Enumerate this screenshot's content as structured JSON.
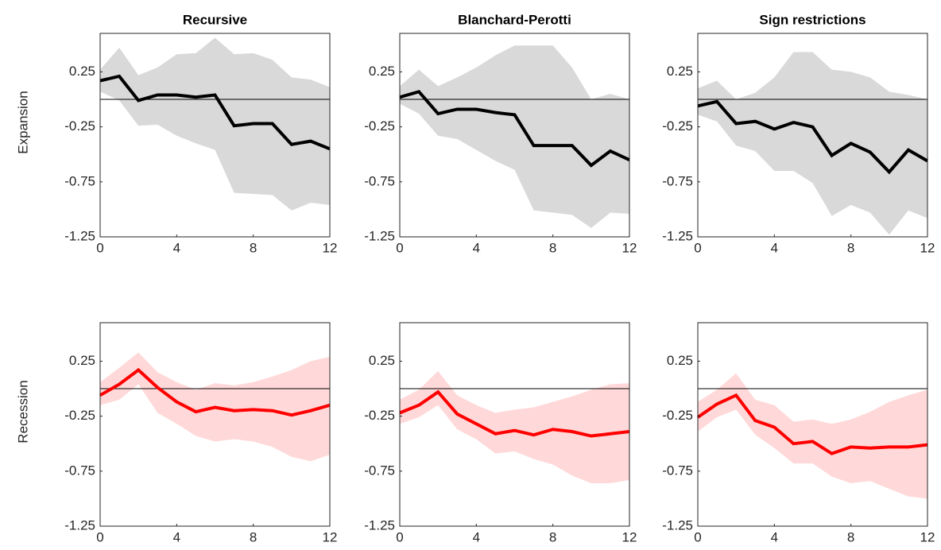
{
  "chart_data": [
    {
      "type": "line",
      "title": "Recursive",
      "ylabel": "Expansion",
      "x": [
        0,
        1,
        2,
        3,
        4,
        5,
        6,
        7,
        8,
        9,
        10,
        11,
        12
      ],
      "values": [
        0.17,
        0.21,
        -0.01,
        0.04,
        0.04,
        0.02,
        0.04,
        -0.24,
        -0.22,
        -0.22,
        -0.41,
        -0.38,
        -0.45
      ],
      "upper": [
        0.27,
        0.47,
        0.22,
        0.29,
        0.41,
        0.42,
        0.56,
        0.41,
        0.42,
        0.36,
        0.2,
        0.18,
        0.11
      ],
      "lower": [
        0.07,
        -0.01,
        -0.24,
        -0.23,
        -0.33,
        -0.4,
        -0.46,
        -0.85,
        -0.86,
        -0.87,
        -1.01,
        -0.94,
        -0.96
      ],
      "color": "#000000",
      "band_color": "#d9d9d9",
      "reference_line": 0,
      "xlim": [
        0,
        12
      ],
      "ylim": [
        -1.25,
        0.6
      ],
      "xticks": [
        0,
        4,
        8,
        12
      ],
      "yticks": [
        -1.25,
        -0.75,
        -0.25,
        0.25
      ]
    },
    {
      "type": "line",
      "title": "Blanchard-Perotti",
      "x": [
        0,
        1,
        2,
        3,
        4,
        5,
        6,
        7,
        8,
        9,
        10,
        11,
        12
      ],
      "values": [
        0.02,
        0.07,
        -0.13,
        -0.09,
        -0.09,
        -0.12,
        -0.14,
        -0.42,
        -0.42,
        -0.42,
        -0.6,
        -0.47,
        -0.55
      ],
      "upper": [
        0.12,
        0.27,
        0.12,
        0.2,
        0.29,
        0.4,
        0.49,
        0.49,
        0.49,
        0.29,
        0.0,
        0.05,
        0.0
      ],
      "lower": [
        -0.04,
        -0.13,
        -0.33,
        -0.36,
        -0.46,
        -0.56,
        -0.64,
        -1.01,
        -1.03,
        -1.05,
        -1.17,
        -1.03,
        -1.04
      ],
      "color": "#000000",
      "band_color": "#d9d9d9",
      "reference_line": 0,
      "xlim": [
        0,
        12
      ],
      "ylim": [
        -1.25,
        0.6
      ],
      "xticks": [
        0,
        4,
        8,
        12
      ],
      "yticks": [
        -1.25,
        -0.75,
        -0.25,
        0.25
      ]
    },
    {
      "type": "line",
      "title": "Sign restrictions",
      "x": [
        0,
        1,
        2,
        3,
        4,
        5,
        6,
        7,
        8,
        9,
        10,
        11,
        12
      ],
      "values": [
        -0.06,
        -0.02,
        -0.22,
        -0.2,
        -0.27,
        -0.21,
        -0.25,
        -0.51,
        -0.4,
        -0.48,
        -0.66,
        -0.46,
        -0.56
      ],
      "upper": [
        0.1,
        0.17,
        0.0,
        0.06,
        0.2,
        0.43,
        0.43,
        0.27,
        0.25,
        0.2,
        0.07,
        0.04,
        0.0
      ],
      "lower": [
        -0.14,
        -0.2,
        -0.42,
        -0.47,
        -0.65,
        -0.65,
        -0.76,
        -1.06,
        -0.96,
        -1.03,
        -1.23,
        -1.01,
        -1.08
      ],
      "color": "#000000",
      "band_color": "#d9d9d9",
      "reference_line": 0,
      "xlim": [
        0,
        12
      ],
      "ylim": [
        -1.25,
        0.6
      ],
      "xticks": [
        0,
        4,
        8,
        12
      ],
      "yticks": [
        -1.25,
        -0.75,
        -0.25,
        0.25
      ]
    },
    {
      "type": "line",
      "ylabel": "Recession",
      "x": [
        0,
        1,
        2,
        3,
        4,
        5,
        6,
        7,
        8,
        9,
        10,
        11,
        12
      ],
      "values": [
        -0.06,
        0.04,
        0.17,
        0.01,
        -0.12,
        -0.21,
        -0.17,
        -0.2,
        -0.19,
        -0.2,
        -0.24,
        -0.2,
        -0.15
      ],
      "upper": [
        0.06,
        0.19,
        0.33,
        0.15,
        0.06,
        -0.01,
        0.05,
        0.03,
        0.06,
        0.11,
        0.17,
        0.25,
        0.29
      ],
      "lower": [
        -0.15,
        -0.1,
        0.04,
        -0.22,
        -0.32,
        -0.43,
        -0.48,
        -0.46,
        -0.48,
        -0.53,
        -0.62,
        -0.66,
        -0.6
      ],
      "color": "#ff0000",
      "band_color": "#ffd9d9",
      "reference_line": 0,
      "xlim": [
        0,
        12
      ],
      "ylim": [
        -1.25,
        0.6
      ],
      "xticks": [
        0,
        4,
        8,
        12
      ],
      "yticks": [
        -1.25,
        -0.75,
        -0.25,
        0.25
      ]
    },
    {
      "type": "line",
      "x": [
        0,
        1,
        2,
        3,
        4,
        5,
        6,
        7,
        8,
        9,
        10,
        11,
        12
      ],
      "values": [
        -0.22,
        -0.15,
        -0.03,
        -0.23,
        -0.32,
        -0.41,
        -0.38,
        -0.42,
        -0.37,
        -0.39,
        -0.43,
        -0.41,
        -0.39
      ],
      "upper": [
        -0.1,
        -0.01,
        0.16,
        -0.06,
        -0.15,
        -0.22,
        -0.19,
        -0.17,
        -0.12,
        -0.07,
        -0.01,
        0.04,
        0.05
      ],
      "lower": [
        -0.32,
        -0.26,
        -0.15,
        -0.37,
        -0.46,
        -0.59,
        -0.57,
        -0.64,
        -0.69,
        -0.79,
        -0.86,
        -0.86,
        -0.83
      ],
      "color": "#ff0000",
      "band_color": "#ffd9d9",
      "reference_line": 0,
      "xlim": [
        0,
        12
      ],
      "ylim": [
        -1.25,
        0.6
      ],
      "xticks": [
        0,
        4,
        8,
        12
      ],
      "yticks": [
        -1.25,
        -0.75,
        -0.25,
        0.25
      ]
    },
    {
      "type": "line",
      "x": [
        0,
        1,
        2,
        3,
        4,
        5,
        6,
        7,
        8,
        9,
        10,
        11,
        12
      ],
      "values": [
        -0.26,
        -0.14,
        -0.06,
        -0.29,
        -0.35,
        -0.5,
        -0.48,
        -0.59,
        -0.53,
        -0.54,
        -0.53,
        -0.53,
        -0.51
      ],
      "upper": [
        -0.12,
        -0.01,
        0.14,
        -0.1,
        -0.15,
        -0.3,
        -0.28,
        -0.32,
        -0.28,
        -0.21,
        -0.12,
        -0.06,
        -0.01
      ],
      "lower": [
        -0.39,
        -0.26,
        -0.19,
        -0.42,
        -0.54,
        -0.68,
        -0.68,
        -0.8,
        -0.86,
        -0.84,
        -0.91,
        -0.98,
        -1.0
      ],
      "color": "#ff0000",
      "band_color": "#ffd9d9",
      "reference_line": 0,
      "xlim": [
        0,
        12
      ],
      "ylim": [
        -1.25,
        0.6
      ],
      "xticks": [
        0,
        4,
        8,
        12
      ],
      "yticks": [
        -1.25,
        -0.75,
        -0.25,
        0.25
      ]
    }
  ]
}
